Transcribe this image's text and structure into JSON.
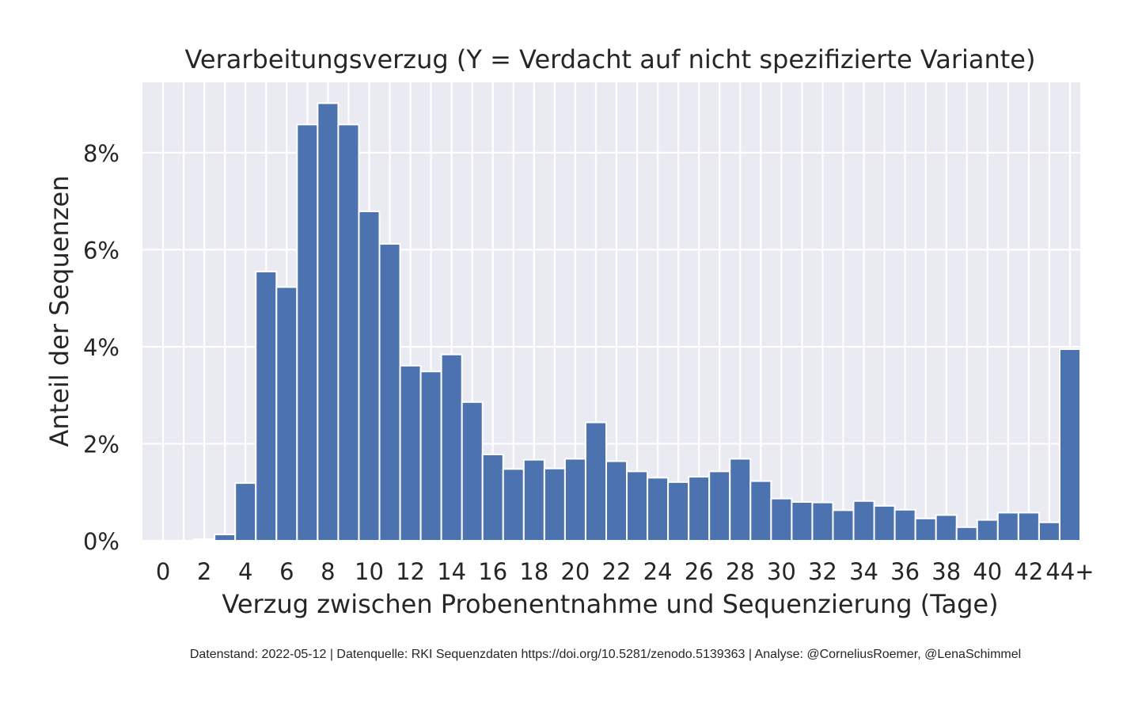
{
  "chart_data": {
    "type": "bar",
    "title": "Verarbeitungsverzug (Y = Verdacht auf nicht spezifizierte Variante)",
    "xlabel": "Verzug zwischen Probenentnahme und Sequenzierung (Tage)",
    "ylabel": "Anteil der Sequenzen",
    "categories": [
      "0",
      "1",
      "2",
      "3",
      "4",
      "5",
      "6",
      "7",
      "8",
      "9",
      "10",
      "11",
      "12",
      "13",
      "14",
      "15",
      "16",
      "17",
      "18",
      "19",
      "20",
      "21",
      "22",
      "23",
      "24",
      "25",
      "26",
      "27",
      "28",
      "29",
      "30",
      "31",
      "32",
      "33",
      "34",
      "35",
      "36",
      "37",
      "38",
      "39",
      "40",
      "41",
      "42",
      "43",
      "44+"
    ],
    "values": [
      0.0,
      0.0,
      0.03,
      0.13,
      1.19,
      5.55,
      5.23,
      8.58,
      9.02,
      8.58,
      6.79,
      6.12,
      3.61,
      3.49,
      3.84,
      2.86,
      1.78,
      1.48,
      1.67,
      1.49,
      1.69,
      2.44,
      1.64,
      1.43,
      1.3,
      1.21,
      1.32,
      1.43,
      1.69,
      1.23,
      0.87,
      0.8,
      0.79,
      0.63,
      0.82,
      0.72,
      0.64,
      0.46,
      0.53,
      0.28,
      0.43,
      0.58,
      0.58,
      0.38,
      3.95
    ],
    "xticks": [
      "0",
      "2",
      "4",
      "6",
      "8",
      "10",
      "12",
      "14",
      "16",
      "18",
      "20",
      "22",
      "24",
      "26",
      "28",
      "30",
      "32",
      "34",
      "36",
      "38",
      "40",
      "42",
      "44+"
    ],
    "yticks": [
      "0%",
      "2%",
      "4%",
      "6%",
      "8%"
    ],
    "ytick_values": [
      0,
      2,
      4,
      6,
      8
    ],
    "ylim": [
      0,
      9.45
    ],
    "grid": true,
    "bar_color": "#4c72b0",
    "background_color": "#eaeaf2",
    "grid_color": "#ffffff"
  },
  "footer": "Datenstand: 2022-05-12 | Datenquelle: RKI Sequenzdaten https://doi.org/10.5281/zenodo.5139363 | Analyse: @CorneliusRoemer, @LenaSchimmel"
}
